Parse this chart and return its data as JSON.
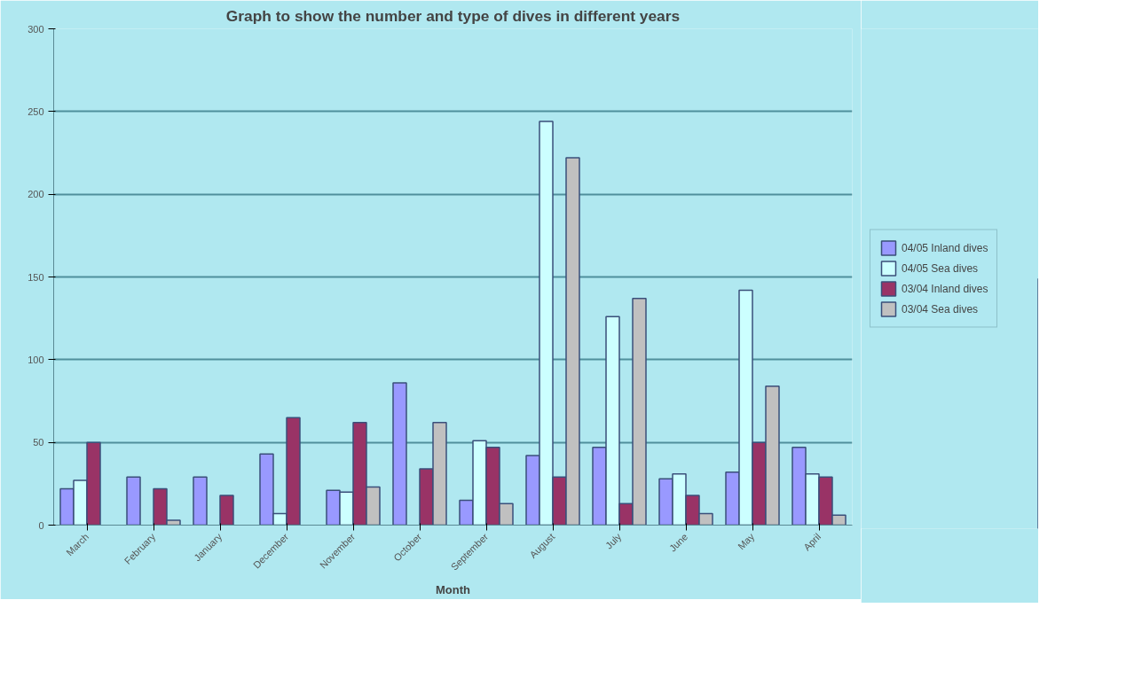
{
  "chart_data": {
    "type": "bar",
    "title": "Graph to show the number and type of dives in different years",
    "xlabel": "Month",
    "categories": [
      "March",
      "February",
      "January",
      "December",
      "November",
      "October",
      "September",
      "August",
      "July",
      "June",
      "May",
      "April"
    ],
    "series": [
      {
        "name": "04/05 Inland dives",
        "color": "#9999ff",
        "values": [
          22,
          29,
          29,
          43,
          21,
          86,
          15,
          42,
          47,
          28,
          32,
          47
        ]
      },
      {
        "name": "04/05 Sea dives",
        "color": "#ccffff",
        "values": [
          27,
          null,
          null,
          7,
          20,
          null,
          51,
          244,
          126,
          31,
          142,
          31
        ]
      },
      {
        "name": "03/04 Inland dives",
        "color": "#993366",
        "values": [
          50,
          22,
          18,
          65,
          62,
          34,
          47,
          29,
          13,
          18,
          50,
          29
        ]
      },
      {
        "name": "03/04 Sea dives",
        "color": "#c0c0c0",
        "values": [
          null,
          3,
          null,
          null,
          23,
          62,
          13,
          222,
          137,
          7,
          84,
          6
        ]
      }
    ],
    "ylim": [
      0,
      300
    ],
    "yticks": [
      0,
      50,
      100,
      150,
      200,
      250,
      300
    ],
    "grid": "y",
    "legend": "right"
  }
}
